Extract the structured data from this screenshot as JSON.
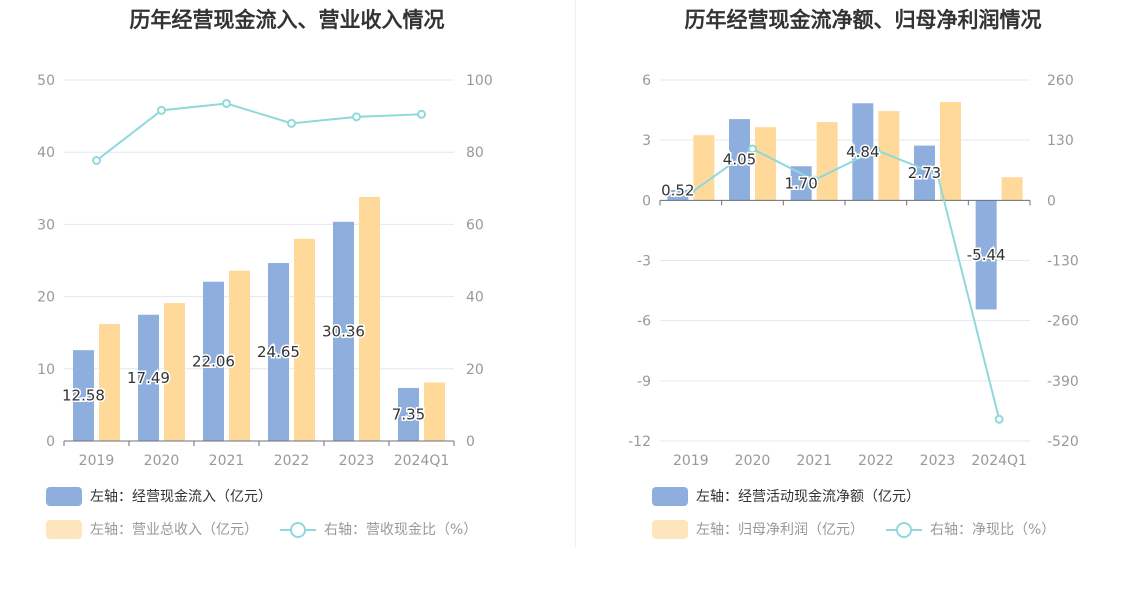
{
  "chart_data": [
    {
      "type": "bar",
      "title": "历年经营现金流入、营业收入情况",
      "categories": [
        "2019",
        "2020",
        "2021",
        "2022",
        "2023",
        "2024Q1"
      ],
      "left_axis": {
        "ylim": [
          0,
          50
        ],
        "ticks": [
          0,
          10,
          20,
          30,
          40,
          50
        ]
      },
      "right_axis": {
        "ylim": [
          0,
          100
        ],
        "ticks": [
          0,
          20,
          40,
          60,
          80,
          100
        ]
      },
      "series": [
        {
          "name": "左轴：经营现金流入（亿元）",
          "type": "bar",
          "axis": "left",
          "color": "#8eaedd",
          "values": [
            12.58,
            17.49,
            22.06,
            24.65,
            30.36,
            7.35
          ],
          "labels": [
            "12.58",
            "17.49",
            "22.06",
            "24.65",
            "30.36",
            "7.35"
          ]
        },
        {
          "name": "左轴：营业总收入（亿元）",
          "type": "bar",
          "axis": "left",
          "color": "#ffd99a",
          "values": [
            16.2,
            19.1,
            23.6,
            28.0,
            33.8,
            8.1
          ]
        },
        {
          "name": "右轴：营收现金比（%）",
          "type": "line",
          "axis": "right",
          "color": "#8fd8dc",
          "values": [
            77.7,
            91.6,
            93.5,
            88.0,
            89.8,
            90.5
          ]
        }
      ],
      "grid": true,
      "legend": "bottom-left"
    },
    {
      "type": "bar",
      "title": "历年经营现金流净额、归母净利润情况",
      "categories": [
        "2019",
        "2020",
        "2021",
        "2022",
        "2023",
        "2024Q1"
      ],
      "left_axis": {
        "ylim": [
          -12,
          6
        ],
        "ticks": [
          -12,
          -9,
          -6,
          -3,
          0,
          3,
          6
        ]
      },
      "right_axis": {
        "ylim": [
          -520,
          260
        ],
        "ticks": [
          -520,
          -390,
          -260,
          -130,
          0,
          130,
          260
        ]
      },
      "series": [
        {
          "name": "左轴：经营活动现金流净额（亿元）",
          "type": "bar",
          "axis": "left",
          "color": "#8eaedd",
          "values": [
            0.52,
            4.05,
            1.7,
            4.84,
            2.73,
            -5.44
          ],
          "labels": [
            "0.52",
            "4.05",
            "1.70",
            "4.84",
            "2.73",
            "-5.44"
          ]
        },
        {
          "name": "左轴：归母净利润（亿元）",
          "type": "bar",
          "axis": "left",
          "color": "#ffd99a",
          "values": [
            3.25,
            3.65,
            3.9,
            4.45,
            4.9,
            1.15
          ]
        },
        {
          "name": "右轴：净现比（%）",
          "type": "line",
          "axis": "right",
          "color": "#8fd8dc",
          "values": [
            16.0,
            111.0,
            43.6,
            108.8,
            55.7,
            -473.0
          ]
        }
      ],
      "grid": true,
      "legend": "bottom-left"
    }
  ]
}
